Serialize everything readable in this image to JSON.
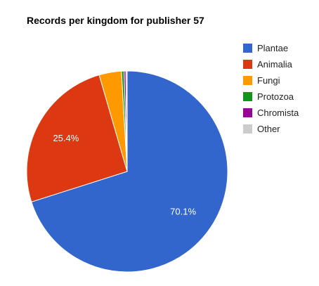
{
  "chart_data": {
    "type": "pie",
    "title": "Records per kingdom for publisher 57",
    "legend_position": "right",
    "slices": [
      {
        "label": "Plantae",
        "value": 70.1,
        "color": "#3366cc",
        "data_label": "70.1%"
      },
      {
        "label": "Animalia",
        "value": 25.4,
        "color": "#dc3912",
        "data_label": "25.4%"
      },
      {
        "label": "Fungi",
        "value": 3.6,
        "color": "#ff9900",
        "data_label": ""
      },
      {
        "label": "Protozoa",
        "value": 0.4,
        "color": "#109618",
        "data_label": ""
      },
      {
        "label": "Chromista",
        "value": 0.3,
        "color": "#990099",
        "data_label": ""
      },
      {
        "label": "Other",
        "value": 0.2,
        "color": "#cccccc",
        "data_label": ""
      }
    ]
  }
}
